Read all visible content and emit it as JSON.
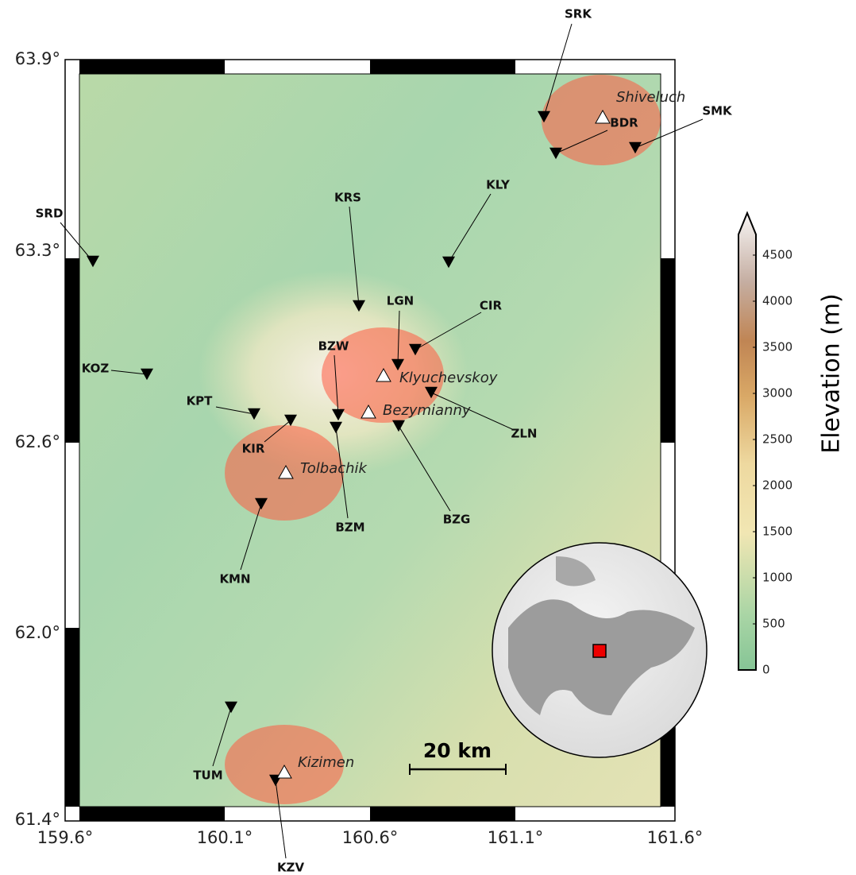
{
  "map": {
    "lat_ticks": [
      "63.9°",
      "63.3°",
      "62.6°",
      "62.0°",
      "61.4°"
    ],
    "lon_ticks": [
      "159.6°",
      "160.1°",
      "160.6°",
      "161.1°",
      "161.6°"
    ],
    "volcanoes": [
      "Shiveluch",
      "Klyuchevskoy",
      "Bezymianny",
      "Tolbachik",
      "Kizimen"
    ],
    "stations": [
      "SRK",
      "BDR",
      "SMK",
      "KLY",
      "KRS",
      "SRD",
      "LGN",
      "CIR",
      "BZW",
      "BZM",
      "KOZ",
      "KPT",
      "KIR",
      "ZLN",
      "BZG",
      "KMN",
      "TUM",
      "KZV"
    ],
    "scale_bar": "20 km",
    "colorbar": {
      "label": "Elevation (m)",
      "lim": [
        0,
        4500
      ],
      "ticks": [
        0,
        500,
        1000,
        1500,
        2000,
        2500,
        3000,
        3500,
        4000,
        4500
      ]
    }
  }
}
